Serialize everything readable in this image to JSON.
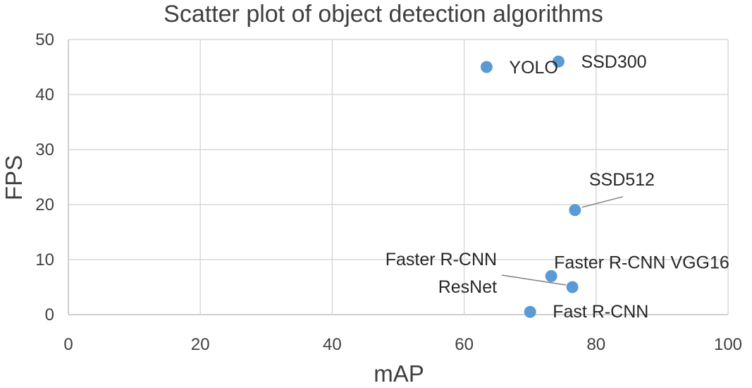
{
  "chart_data": {
    "type": "scatter",
    "title": "Scatter plot of object detection algorithms",
    "xlabel": "mAP",
    "ylabel": "FPS",
    "xlim": [
      0,
      100
    ],
    "ylim": [
      0,
      50
    ],
    "xticks": [
      0,
      20,
      40,
      60,
      80,
      100
    ],
    "yticks": [
      0,
      10,
      20,
      30,
      40,
      50
    ],
    "grid": true,
    "marker_color": "#5b9bd5",
    "points": [
      {
        "label": "YOLO",
        "x": 63.4,
        "y": 45
      },
      {
        "label": "SSD300",
        "x": 74.3,
        "y": 46
      },
      {
        "label": "SSD512",
        "x": 76.8,
        "y": 19
      },
      {
        "label": "Faster R-CNN VGG16",
        "x": 73.2,
        "y": 7
      },
      {
        "label": "Faster R-CNN ResNet",
        "label_lines": [
          "Faster R-CNN",
          "ResNet"
        ],
        "x": 76.4,
        "y": 5
      },
      {
        "label": "Fast R-CNN",
        "x": 70.0,
        "y": 0.5
      }
    ]
  }
}
